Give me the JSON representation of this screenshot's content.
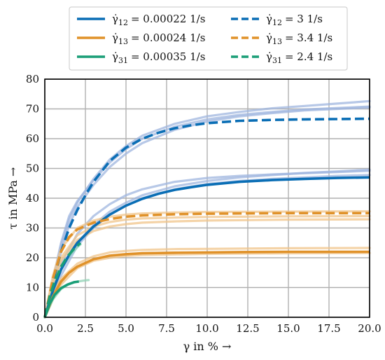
{
  "chart_data": {
    "type": "line",
    "xlabel": "γ in % →",
    "ylabel": "τ in MPa →",
    "xlim": [
      0,
      20
    ],
    "ylim": [
      0,
      80
    ],
    "xticks": [
      "0.0",
      "2.5",
      "5.0",
      "7.5",
      "10.0",
      "12.5",
      "15.0",
      "17.5",
      "20.0"
    ],
    "yticks": [
      "0",
      "10",
      "20",
      "30",
      "40",
      "50",
      "60",
      "70",
      "80"
    ],
    "grid": true,
    "legend_position": "top-center",
    "colors": {
      "blue": "#0a6eb5",
      "orange": "#e0922a",
      "green": "#1a9e77",
      "blue_light": "#9fb6df",
      "orange_light": "#f0c48a",
      "green_light": "#8fd1b4"
    },
    "series": [
      {
        "name": "γ̇₁₂ = 0.00022 1/s",
        "legend_prefix": "γ̇",
        "legend_sub": "12",
        "legend_value": "= 0.00022 1/s",
        "color": "blue",
        "dash": "solid",
        "x": [
          0,
          0.5,
          1,
          1.5,
          2,
          3,
          4,
          5,
          6,
          7,
          8,
          9,
          10,
          12,
          14,
          16,
          18,
          20
        ],
        "y": [
          0,
          9,
          16,
          21,
          25,
          30.5,
          34.5,
          37.5,
          39.8,
          41.5,
          42.8,
          43.7,
          44.5,
          45.5,
          46.1,
          46.5,
          46.8,
          47
        ]
      },
      {
        "name": "γ̇₁₃ = 0.00024 1/s",
        "legend_prefix": "γ̇",
        "legend_sub": "13",
        "legend_value": "= 0.00024 1/s",
        "color": "orange",
        "dash": "solid",
        "x": [
          0,
          0.5,
          1,
          1.5,
          2,
          3,
          4,
          5,
          6,
          8,
          10,
          12,
          15,
          20
        ],
        "y": [
          0,
          7,
          12,
          15,
          17,
          19.5,
          20.7,
          21.2,
          21.5,
          21.7,
          21.8,
          21.9,
          22,
          22
        ]
      },
      {
        "name": "γ̇₃₁ = 0.00035 1/s",
        "legend_prefix": "γ̇",
        "legend_sub": "31",
        "legend_value": "= 0.00035 1/s",
        "color": "green",
        "dash": "solid",
        "x": [
          0,
          0.3,
          0.6,
          1,
          1.4,
          1.8,
          2.1
        ],
        "y": [
          0,
          4.5,
          7.5,
          9.8,
          11,
          11.8,
          12
        ]
      },
      {
        "name": "γ̇₁₂ = 3 1/s",
        "legend_prefix": "γ̇",
        "legend_sub": "12",
        "legend_value": "= 3 1/s",
        "color": "blue",
        "dash": "dashed",
        "x": [
          0,
          0.5,
          1,
          1.5,
          2,
          2.5,
          3,
          4,
          5,
          6,
          7,
          8,
          9,
          10,
          12,
          14,
          16,
          18,
          20
        ],
        "y": [
          0,
          12,
          22,
          30,
          36,
          41,
          45.5,
          52.5,
          57,
          60,
          62,
          63.5,
          64.5,
          65.2,
          66,
          66.3,
          66.5,
          66.6,
          66.7
        ]
      },
      {
        "name": "γ̇₁₃ = 3.4 1/s",
        "legend_prefix": "γ̇",
        "legend_sub": "13",
        "legend_value": "= 3.4 1/s",
        "color": "orange",
        "dash": "dashed",
        "x": [
          0,
          0.5,
          1,
          1.5,
          2,
          3,
          4,
          5,
          6,
          8,
          10,
          15,
          20
        ],
        "y": [
          0,
          13,
          22,
          27,
          29.5,
          31.8,
          33,
          33.8,
          34.2,
          34.6,
          34.8,
          35,
          35
        ]
      },
      {
        "name": "γ̇₃₁ = 2.4 1/s",
        "legend_prefix": "γ̇",
        "legend_sub": "31",
        "legend_value": "= 2.4 1/s",
        "color": "green",
        "dash": "dashed",
        "x": [
          0,
          0.3,
          0.6,
          1,
          1.4,
          1.8,
          2.2
        ],
        "y": [
          0,
          7,
          12,
          17,
          20.5,
          23,
          25
        ]
      }
    ],
    "raw_series": [
      {
        "color": "blue_light",
        "x": [
          0,
          1,
          2,
          3,
          4,
          5,
          6,
          8,
          10,
          12,
          14,
          16,
          18,
          20
        ],
        "y": [
          0,
          18,
          28,
          34,
          38,
          41,
          43,
          45.5,
          46.8,
          47.5,
          48,
          48.4,
          48.8,
          49.2
        ]
      },
      {
        "color": "blue_light",
        "x": [
          0,
          1,
          2,
          3,
          4,
          5,
          6,
          8,
          10,
          12,
          14,
          16,
          18,
          20
        ],
        "y": [
          0,
          14,
          24,
          30,
          34.5,
          37.5,
          40,
          43,
          44.8,
          45.8,
          46.5,
          47,
          47.5,
          47.8
        ]
      },
      {
        "color": "blue_light",
        "x": [
          0,
          1,
          2,
          3,
          4,
          5,
          6,
          8,
          10,
          12,
          14,
          16,
          18,
          20
        ],
        "y": [
          0,
          16,
          25,
          31,
          35.5,
          38.5,
          41,
          44,
          45.8,
          47,
          47.8,
          48.5,
          49,
          49.6
        ]
      },
      {
        "color": "blue_light",
        "x": [
          0,
          1,
          1.5,
          2,
          3,
          4,
          5,
          6,
          8,
          10,
          12,
          14,
          16,
          18,
          20
        ],
        "y": [
          0,
          25,
          34,
          39,
          46,
          52,
          56.5,
          60,
          64,
          66.5,
          68,
          69,
          69.8,
          70.3,
          70.8
        ]
      },
      {
        "color": "blue_light",
        "x": [
          0,
          1,
          1.5,
          2,
          3,
          4,
          5,
          6,
          8,
          10,
          12,
          14,
          16,
          18,
          20
        ],
        "y": [
          0,
          22,
          31,
          37,
          44.5,
          50.5,
          55,
          58.5,
          63,
          65.8,
          67.5,
          68.6,
          69.5,
          70,
          70.5
        ]
      },
      {
        "color": "blue_light",
        "x": [
          0,
          1,
          1.5,
          2,
          3,
          4,
          5,
          6,
          8,
          10,
          12,
          14,
          16,
          18,
          20
        ],
        "y": [
          0,
          24,
          33,
          38.5,
          46.5,
          53,
          57.5,
          61,
          65,
          67.5,
          69,
          70.2,
          71,
          71.8,
          72.6
        ]
      },
      {
        "color": "orange_light",
        "x": [
          0,
          0.5,
          1,
          2,
          3,
          4,
          5,
          6,
          8,
          10,
          15,
          20
        ],
        "y": [
          0,
          8,
          13,
          18,
          20.5,
          21.8,
          22.3,
          22.6,
          22.9,
          23,
          23.2,
          23.3
        ]
      },
      {
        "color": "orange_light",
        "x": [
          0,
          0.5,
          1,
          2,
          3,
          4,
          5,
          6,
          8,
          10,
          15,
          20
        ],
        "y": [
          0,
          6,
          11,
          16.5,
          19,
          20,
          20.6,
          20.9,
          21.1,
          21.3,
          21.5,
          21.6
        ]
      },
      {
        "color": "orange_light",
        "x": [
          0,
          0.5,
          1,
          2,
          3,
          4,
          5,
          6,
          8,
          10,
          15,
          20
        ],
        "y": [
          0,
          14,
          23,
          30,
          32.5,
          33.8,
          34.5,
          34.9,
          35.2,
          35.4,
          35.5,
          35.6
        ]
      },
      {
        "color": "orange_light",
        "x": [
          0,
          0.5,
          1,
          2,
          3,
          4,
          5,
          6,
          8,
          10,
          15,
          20
        ],
        "y": [
          0,
          11,
          19,
          26,
          29,
          30.5,
          31.3,
          31.8,
          32.2,
          32.5,
          32.8,
          32.9
        ]
      },
      {
        "color": "orange_light",
        "x": [
          0,
          0.5,
          1,
          2,
          3,
          4,
          5,
          6,
          8,
          10,
          15,
          20
        ],
        "y": [
          0,
          12,
          20,
          27.5,
          30.5,
          32,
          32.8,
          33.2,
          33.5,
          33.7,
          33.9,
          34
        ]
      },
      {
        "color": "green_light",
        "x": [
          0,
          0.5,
          1,
          1.5,
          2,
          2.5,
          2.7
        ],
        "y": [
          0,
          6,
          9.5,
          11.2,
          12,
          12.4,
          12.5
        ]
      },
      {
        "color": "green_light",
        "x": [
          0,
          0.5,
          1,
          1.5,
          2,
          2.2
        ],
        "y": [
          0,
          10,
          16,
          20.5,
          23.5,
          24.5
        ]
      }
    ]
  }
}
